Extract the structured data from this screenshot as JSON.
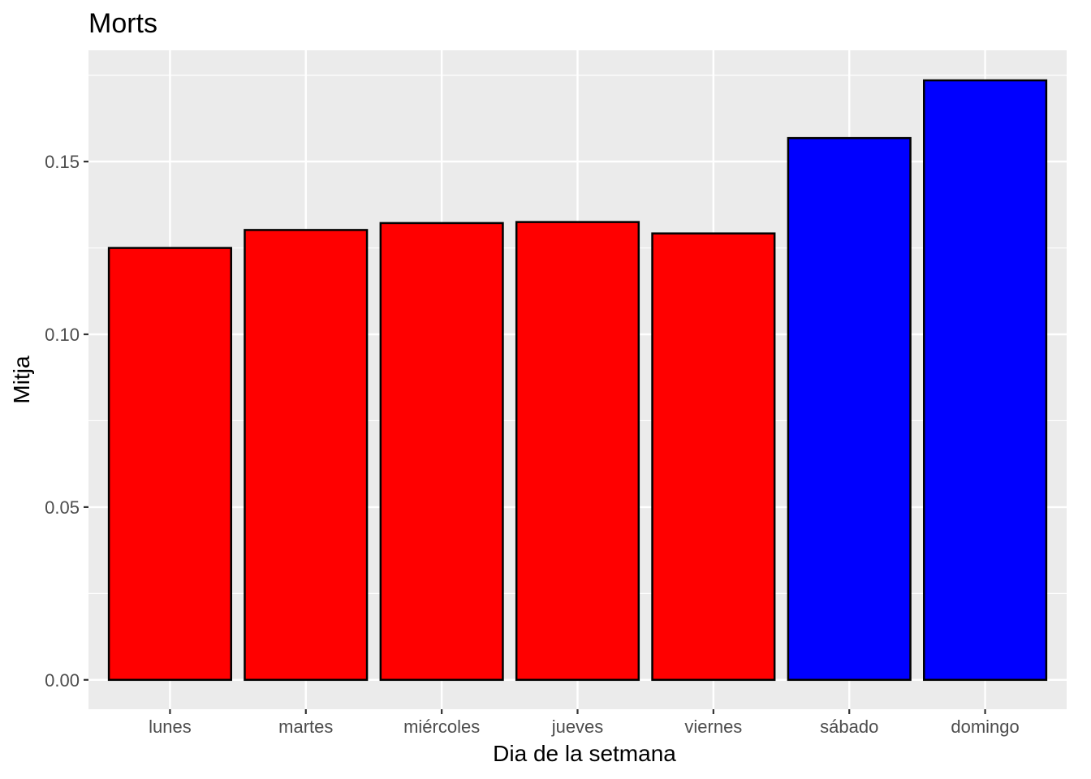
{
  "chart_data": {
    "type": "bar",
    "title": "Morts",
    "xlabel": "Dia de la setmana",
    "ylabel": "Mitja",
    "categories": [
      "lunes",
      "martes",
      "miércoles",
      "jueves",
      "viernes",
      "sábado",
      "domingo"
    ],
    "values": [
      0.125,
      0.1302,
      0.1322,
      0.1325,
      0.1292,
      0.1568,
      0.1735
    ],
    "bar_colors": [
      "#ff0000",
      "#ff0000",
      "#ff0000",
      "#ff0000",
      "#ff0000",
      "#0000ff",
      "#0000ff"
    ],
    "bar_border_color": "#000000",
    "ylim": [
      -0.0085,
      0.1822
    ],
    "yticks": [
      0.0,
      0.05,
      0.1,
      0.15
    ],
    "ytick_labels": [
      "0.00",
      "0.05",
      "0.10",
      "0.15"
    ],
    "panel_background": "#ebebeb",
    "grid": true,
    "legend": "none"
  }
}
